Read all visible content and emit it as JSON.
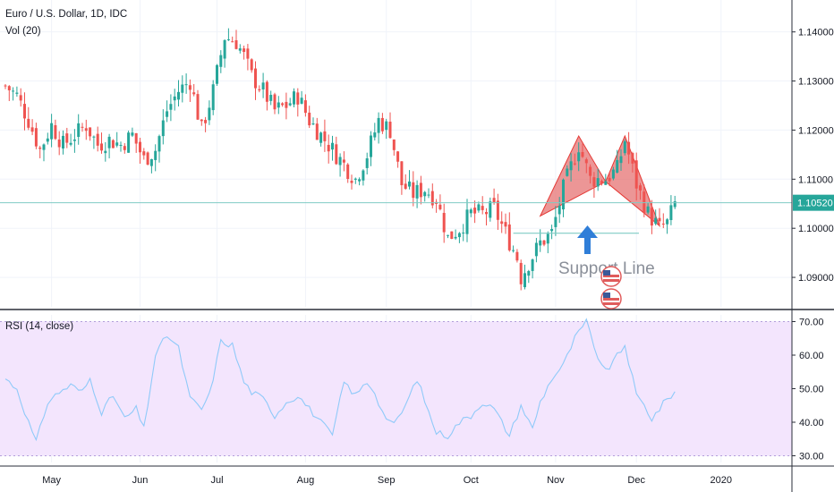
{
  "header": {
    "symbol_title": "Euro / U.S. Dollar, 1D, IDC",
    "volume_label": "Vol (20)",
    "rsi_label": "RSI (14, close)"
  },
  "annotations": {
    "support_text": "Support Line"
  },
  "colors": {
    "up": "#26a69a",
    "down": "#ef5350",
    "pattern_fill": "#e57373",
    "price_line": "#80cbc4",
    "price_tag": "#26a69a",
    "rsi_line": "#90caf9",
    "rsi_band": "#f3e5fd",
    "arrow": "#2f7ed8",
    "grid": "#f0f3fa",
    "axis_text": "#131722"
  },
  "chart_data": [
    {
      "type": "candlestick",
      "title": "Euro / U.S. Dollar, 1D, IDC",
      "x_axis": {
        "tick_labels": [
          "May",
          "Jun",
          "Jul",
          "Aug",
          "Sep",
          "Oct",
          "Nov",
          "Dec",
          "2020"
        ]
      },
      "y_axis": {
        "tick_values": [
          1.09,
          1.1,
          1.11,
          1.12,
          1.13,
          1.14
        ],
        "tick_labels": [
          "1.09000",
          "1.10000",
          "1.11000",
          "1.12000",
          "1.13000",
          "1.14000"
        ],
        "range": [
          1.084,
          1.1465
        ]
      },
      "last_price": 1.1052,
      "last_price_label": "1.10520",
      "support_level": 1.099,
      "pattern_points": [
        {
          "i": 139,
          "price": 1.1025
        },
        {
          "i": 149,
          "price": 1.1188
        },
        {
          "i": 156,
          "price": 1.1095
        },
        {
          "i": 161,
          "price": 1.1188
        },
        {
          "i": 170,
          "price": 1.1005
        }
      ],
      "series_control_points": [
        [
          0,
          1.129
        ],
        [
          3,
          1.127
        ],
        [
          6,
          1.122
        ],
        [
          9,
          1.116
        ],
        [
          12,
          1.121
        ],
        [
          15,
          1.117
        ],
        [
          18,
          1.119
        ],
        [
          21,
          1.121
        ],
        [
          24,
          1.117
        ],
        [
          27,
          1.118
        ],
        [
          30,
          1.117
        ],
        [
          33,
          1.119
        ],
        [
          36,
          1.114
        ],
        [
          39,
          1.116
        ],
        [
          42,
          1.124
        ],
        [
          45,
          1.128
        ],
        [
          48,
          1.13
        ],
        [
          51,
          1.12
        ],
        [
          54,
          1.128
        ],
        [
          57,
          1.139
        ],
        [
          60,
          1.138
        ],
        [
          62,
          1.135
        ],
        [
          64,
          1.131
        ],
        [
          67,
          1.128
        ],
        [
          70,
          1.124
        ],
        [
          73,
          1.125
        ],
        [
          76,
          1.127
        ],
        [
          79,
          1.122
        ],
        [
          82,
          1.119
        ],
        [
          85,
          1.116
        ],
        [
          88,
          1.113
        ],
        [
          91,
          1.11
        ],
        [
          94,
          1.115
        ],
        [
          97,
          1.122
        ],
        [
          100,
          1.12
        ],
        [
          103,
          1.109
        ],
        [
          106,
          1.107
        ],
        [
          109,
          1.108
        ],
        [
          112,
          1.106
        ],
        [
          115,
          1.098
        ],
        [
          118,
          1.1
        ],
        [
          121,
          1.103
        ],
        [
          124,
          1.103
        ],
        [
          127,
          1.104
        ],
        [
          130,
          1.099
        ],
        [
          133,
          1.094
        ],
        [
          134,
          1.09
        ],
        [
          136,
          1.093
        ],
        [
          139,
          1.097
        ],
        [
          142,
          1.099
        ],
        [
          145,
          1.108
        ],
        [
          149,
          1.117
        ],
        [
          152,
          1.11
        ],
        [
          156,
          1.11
        ],
        [
          159,
          1.112
        ],
        [
          161,
          1.118
        ],
        [
          164,
          1.109
        ],
        [
          167,
          1.103
        ],
        [
          170,
          1.1
        ],
        [
          172,
          1.101
        ],
        [
          174,
          1.105
        ]
      ]
    },
    {
      "type": "line",
      "title": "RSI (14, close)",
      "y_axis": {
        "tick_values": [
          30,
          40,
          50,
          60,
          70
        ],
        "tick_labels": [
          "30.00",
          "40.00",
          "50.00",
          "60.00",
          "70.00"
        ],
        "range": [
          28,
          72
        ]
      },
      "band": [
        30,
        70
      ],
      "series_control_points": [
        [
          0,
          53
        ],
        [
          3,
          50
        ],
        [
          6,
          40
        ],
        [
          8,
          34
        ],
        [
          11,
          46
        ],
        [
          14,
          49
        ],
        [
          17,
          51
        ],
        [
          20,
          49
        ],
        [
          22,
          53
        ],
        [
          25,
          43
        ],
        [
          28,
          48
        ],
        [
          31,
          41
        ],
        [
          34,
          44
        ],
        [
          36,
          38
        ],
        [
          39,
          60
        ],
        [
          42,
          66
        ],
        [
          45,
          62
        ],
        [
          48,
          47
        ],
        [
          51,
          44
        ],
        [
          53,
          48
        ],
        [
          56,
          64
        ],
        [
          59,
          63
        ],
        [
          62,
          52
        ],
        [
          64,
          49
        ],
        [
          67,
          47
        ],
        [
          70,
          42
        ],
        [
          73,
          46
        ],
        [
          76,
          48
        ],
        [
          79,
          44
        ],
        [
          82,
          40
        ],
        [
          85,
          36
        ],
        [
          88,
          52
        ],
        [
          91,
          48
        ],
        [
          94,
          52
        ],
        [
          96,
          49
        ],
        [
          98,
          43
        ],
        [
          101,
          39
        ],
        [
          104,
          45
        ],
        [
          107,
          53
        ],
        [
          110,
          43
        ],
        [
          112,
          37
        ],
        [
          115,
          36
        ],
        [
          118,
          40
        ],
        [
          121,
          42
        ],
        [
          124,
          46
        ],
        [
          127,
          44
        ],
        [
          129,
          40
        ],
        [
          131,
          36
        ],
        [
          134,
          45
        ],
        [
          137,
          38
        ],
        [
          139,
          46
        ],
        [
          142,
          53
        ],
        [
          145,
          57
        ],
        [
          148,
          65
        ],
        [
          151,
          70
        ],
        [
          153,
          62
        ],
        [
          156,
          55
        ],
        [
          158,
          58
        ],
        [
          161,
          63
        ],
        [
          164,
          48
        ],
        [
          166,
          45
        ],
        [
          168,
          41
        ],
        [
          170,
          44
        ],
        [
          172,
          47
        ],
        [
          174,
          49
        ]
      ]
    }
  ]
}
